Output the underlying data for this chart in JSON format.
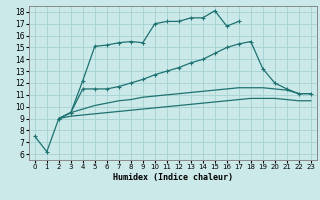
{
  "xlabel": "Humidex (Indice chaleur)",
  "xlim": [
    -0.5,
    23.5
  ],
  "ylim": [
    5.5,
    18.5
  ],
  "xticks": [
    0,
    1,
    2,
    3,
    4,
    5,
    6,
    7,
    8,
    9,
    10,
    11,
    12,
    13,
    14,
    15,
    16,
    17,
    18,
    19,
    20,
    21,
    22,
    23
  ],
  "yticks": [
    6,
    7,
    8,
    9,
    10,
    11,
    12,
    13,
    14,
    15,
    16,
    17,
    18
  ],
  "bg_color": "#cce9e9",
  "line_color": "#1e7272",
  "grid_color": "#aad4d4",
  "line1_x": [
    0,
    1,
    2,
    3,
    4,
    5,
    6,
    7,
    8,
    9,
    10,
    11,
    12,
    13,
    14,
    15,
    16,
    17
  ],
  "line1_y": [
    7.5,
    6.2,
    9.0,
    9.5,
    12.2,
    15.1,
    15.2,
    15.4,
    15.5,
    15.4,
    17.0,
    17.2,
    17.2,
    17.5,
    17.5,
    18.1,
    16.8,
    17.2
  ],
  "line2_x": [
    2,
    3,
    4,
    5,
    6,
    7,
    8,
    9,
    10,
    11,
    12,
    13,
    14,
    15,
    16,
    17,
    18,
    19,
    20,
    21,
    22,
    23
  ],
  "line2_y": [
    9.0,
    9.5,
    11.5,
    11.5,
    11.5,
    11.7,
    12.0,
    12.3,
    12.7,
    13.0,
    13.3,
    13.7,
    14.0,
    14.5,
    15.0,
    15.3,
    15.5,
    13.2,
    12.0,
    11.5,
    11.1,
    11.1
  ],
  "line3_x": [
    2,
    3,
    4,
    5,
    6,
    7,
    8,
    9,
    10,
    11,
    12,
    13,
    14,
    15,
    16,
    17,
    18,
    19,
    20,
    21,
    22,
    23
  ],
  "line3_y": [
    9.0,
    9.5,
    9.8,
    10.1,
    10.3,
    10.5,
    10.6,
    10.8,
    10.9,
    11.0,
    11.1,
    11.2,
    11.3,
    11.4,
    11.5,
    11.6,
    11.6,
    11.6,
    11.5,
    11.4,
    11.1,
    11.1
  ],
  "line4_x": [
    2,
    3,
    4,
    5,
    6,
    7,
    8,
    9,
    10,
    11,
    12,
    13,
    14,
    15,
    16,
    17,
    18,
    19,
    20,
    21,
    22,
    23
  ],
  "line4_y": [
    9.0,
    9.2,
    9.3,
    9.4,
    9.5,
    9.6,
    9.7,
    9.8,
    9.9,
    10.0,
    10.1,
    10.2,
    10.3,
    10.4,
    10.5,
    10.6,
    10.7,
    10.7,
    10.7,
    10.6,
    10.5,
    10.5
  ]
}
